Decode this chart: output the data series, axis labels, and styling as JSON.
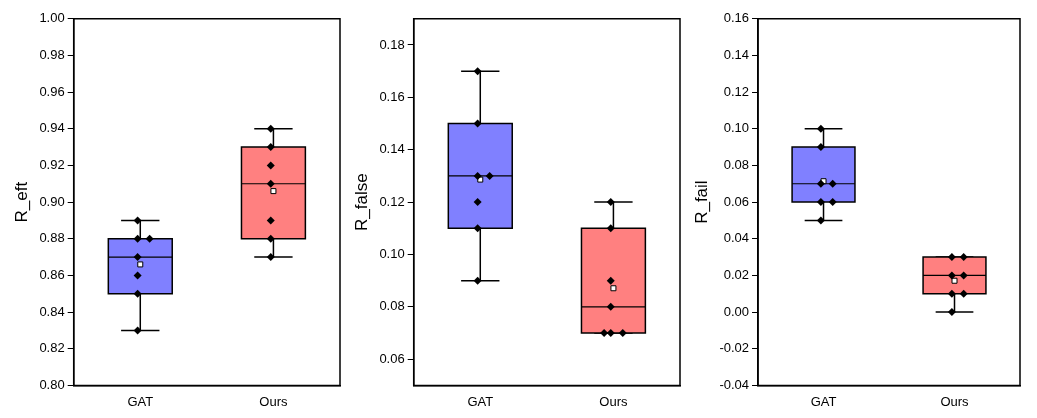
{
  "chart_data": [
    {
      "type": "box",
      "ylabel": "R_eft",
      "categories": [
        "GAT",
        "Ours"
      ],
      "colors": [
        "#8080ff",
        "#ff8080"
      ],
      "ylim": [
        0.8,
        1.0
      ],
      "yticks": [
        {
          "value": 0.8,
          "label": "0.80"
        },
        0.82,
        0.84,
        0.86,
        0.88,
        {
          "value": 0.9,
          "label": "0.90"
        },
        0.92,
        0.94,
        0.96,
        0.98,
        {
          "value": 1.0,
          "label": "1.00"
        }
      ],
      "grid": false,
      "legend": false,
      "boxes": [
        {
          "low": 0.83,
          "q1": 0.85,
          "median": 0.87,
          "q3": 0.88,
          "high": 0.89,
          "mean": 0.866
        },
        {
          "low": 0.87,
          "q1": 0.88,
          "median": 0.91,
          "q3": 0.93,
          "high": 0.94,
          "mean": 0.906
        }
      ],
      "series": [
        {
          "type": "scatter",
          "marker": "diamond",
          "color": "#000000",
          "x": [
            "GAT",
            "GAT",
            "GAT",
            "GAT",
            "GAT",
            "GAT",
            "GAT",
            "Ours",
            "Ours",
            "Ours",
            "Ours",
            "Ours",
            "Ours",
            "Ours"
          ],
          "values": [
            0.89,
            0.88,
            0.88,
            0.87,
            0.86,
            0.85,
            0.83,
            0.94,
            0.93,
            0.92,
            0.91,
            0.89,
            0.88,
            0.87
          ]
        }
      ]
    },
    {
      "type": "box",
      "ylabel": "R_false",
      "categories": [
        "GAT",
        "Ours"
      ],
      "colors": [
        "#8080ff",
        "#ff8080"
      ],
      "ylim": [
        0.05,
        0.19
      ],
      "yticks": [
        0.06,
        0.08,
        {
          "value": 0.1,
          "label": "0.10"
        },
        0.12,
        0.14,
        0.16,
        0.18
      ],
      "grid": false,
      "legend": false,
      "boxes": [
        {
          "low": 0.09,
          "q1": 0.11,
          "median": 0.13,
          "q3": 0.15,
          "high": 0.17,
          "mean": 0.1286
        },
        {
          "low": 0.07,
          "q1": 0.07,
          "median": 0.08,
          "q3": 0.11,
          "high": 0.12,
          "mean": 0.0871
        }
      ],
      "series": [
        {
          "type": "scatter",
          "marker": "diamond",
          "color": "#000000",
          "x": [
            "GAT",
            "GAT",
            "GAT",
            "GAT",
            "GAT",
            "GAT",
            "GAT",
            "Ours",
            "Ours",
            "Ours",
            "Ours",
            "Ours",
            "Ours",
            "Ours"
          ],
          "values": [
            0.17,
            0.15,
            0.13,
            0.13,
            0.12,
            0.11,
            0.09,
            0.12,
            0.11,
            0.09,
            0.08,
            0.07,
            0.07,
            0.07
          ]
        }
      ]
    },
    {
      "type": "box",
      "ylabel": "R_fail",
      "categories": [
        "GAT",
        "Ours"
      ],
      "colors": [
        "#8080ff",
        "#ff8080"
      ],
      "ylim": [
        -0.04,
        0.16
      ],
      "yticks": [
        -0.04,
        -0.02,
        {
          "value": 0.0,
          "label": "0.00"
        },
        0.02,
        0.04,
        0.06,
        0.08,
        {
          "value": 0.1,
          "label": "0.10"
        },
        0.12,
        0.14,
        0.16
      ],
      "grid": false,
      "legend": false,
      "boxes": [
        {
          "low": 0.05,
          "q1": 0.06,
          "median": 0.07,
          "q3": 0.09,
          "high": 0.1,
          "mean": 0.0714
        },
        {
          "low": 0.0,
          "q1": 0.01,
          "median": 0.02,
          "q3": 0.03,
          "high": 0.03,
          "mean": 0.0171
        }
      ],
      "series": [
        {
          "type": "scatter",
          "marker": "diamond",
          "color": "#000000",
          "x": [
            "GAT",
            "GAT",
            "GAT",
            "GAT",
            "GAT",
            "GAT",
            "GAT",
            "Ours",
            "Ours",
            "Ours",
            "Ours",
            "Ours",
            "Ours",
            "Ours"
          ],
          "values": [
            0.1,
            0.09,
            0.07,
            0.07,
            0.06,
            0.06,
            0.05,
            0.03,
            0.03,
            0.02,
            0.02,
            0.01,
            0.01,
            0.0
          ]
        }
      ]
    }
  ]
}
